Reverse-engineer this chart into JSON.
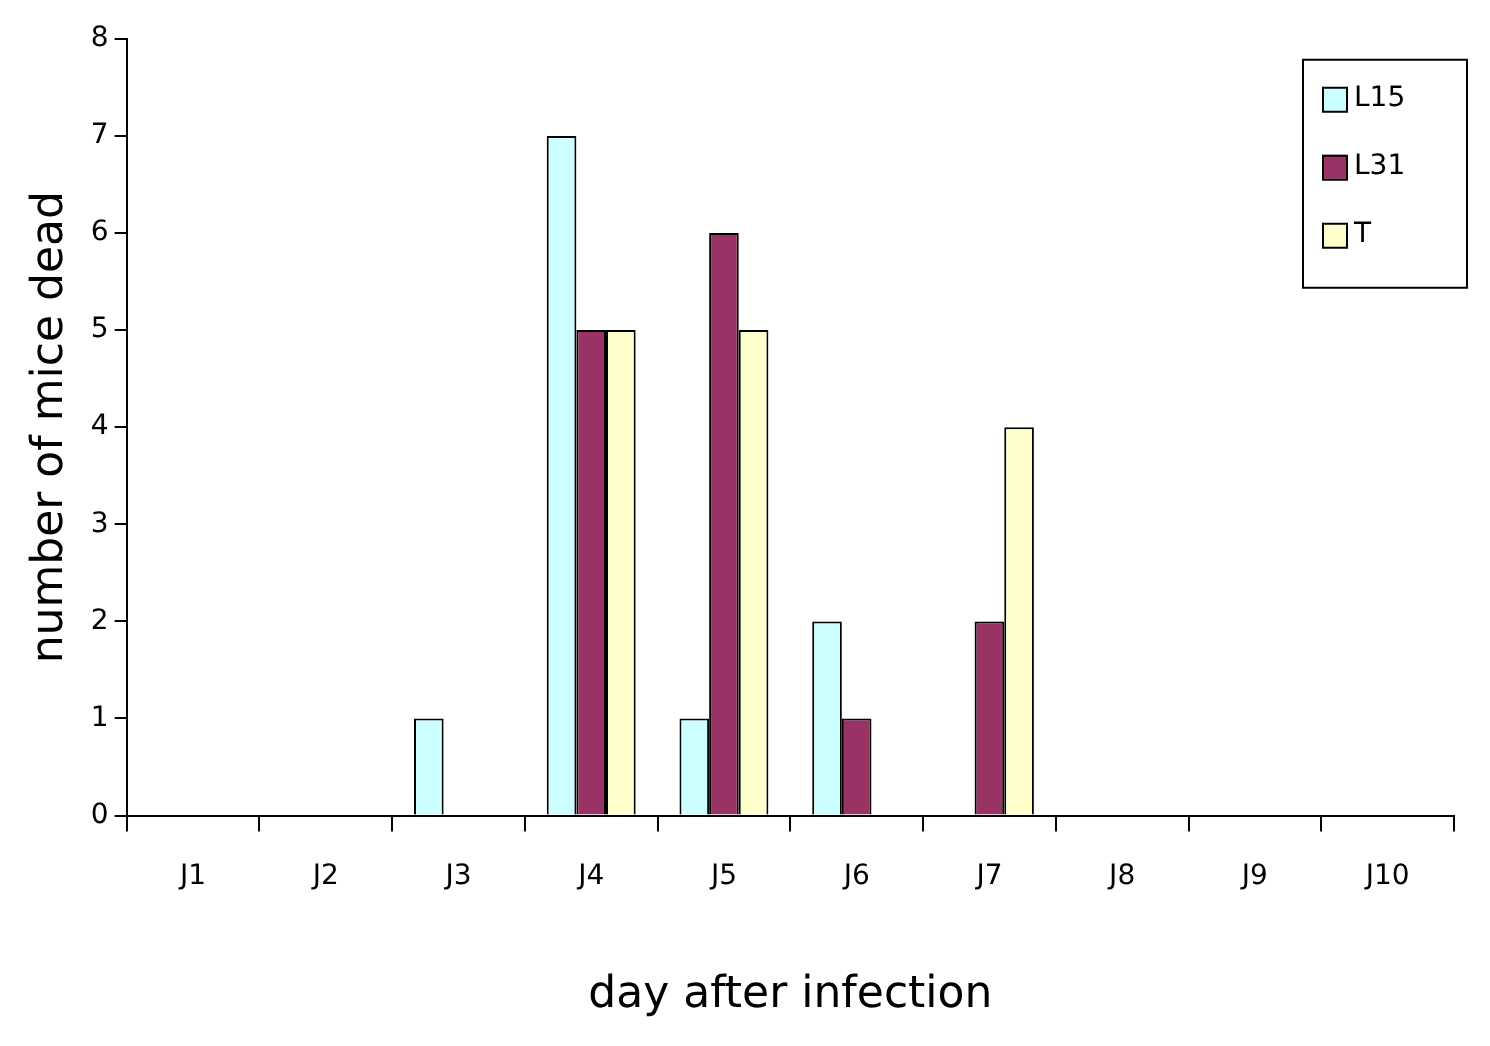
{
  "chart_data": {
    "type": "bar",
    "xlabel": "day after infection",
    "ylabel": "number of mice dead",
    "categories": [
      "J1",
      "J2",
      "J3",
      "J4",
      "J5",
      "J6",
      "J7",
      "J8",
      "J9",
      "J10"
    ],
    "series": [
      {
        "name": "L15",
        "color": "#ccffff",
        "values": [
          0,
          0,
          1,
          7,
          1,
          2,
          0,
          0,
          0,
          0
        ]
      },
      {
        "name": "L31",
        "color": "#993366",
        "values": [
          0,
          0,
          0,
          5,
          6,
          1,
          2,
          0,
          0,
          0
        ]
      },
      {
        "name": "T",
        "color": "#ffffcc",
        "values": [
          0,
          0,
          0,
          5,
          5,
          0,
          4,
          0,
          0,
          0
        ]
      }
    ],
    "ylim": [
      0,
      8
    ],
    "yticks": [
      0,
      1,
      2,
      3,
      4,
      5,
      6,
      7,
      8
    ],
    "grid": false,
    "legend": "top right"
  }
}
